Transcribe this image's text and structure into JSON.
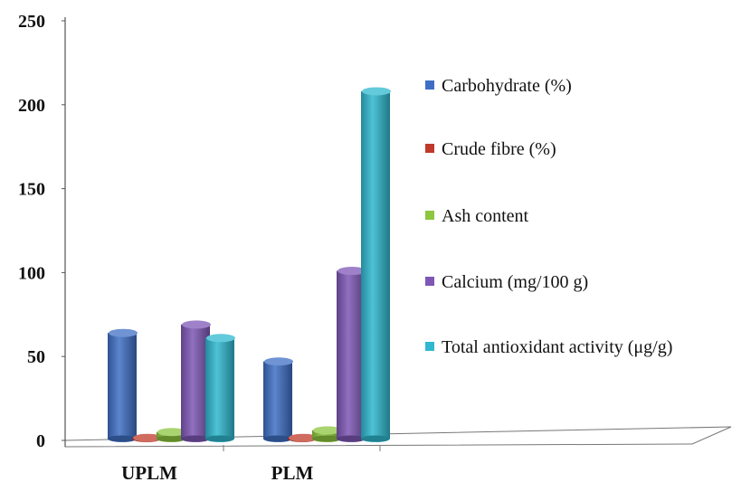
{
  "chart_data": {
    "type": "bar",
    "style": "3d-cylinder",
    "categories": [
      "UPLM",
      "PLM"
    ],
    "series": [
      {
        "name": "Carbohydrate (%)",
        "color": "#3f6fc4",
        "values": [
          64,
          47
        ]
      },
      {
        "name": "Crude fibre (%)",
        "color": "#c0392b",
        "values": [
          1.5,
          1.5
        ]
      },
      {
        "name": "Ash content",
        "color": "#8dc63f",
        "values": [
          5,
          6
        ]
      },
      {
        "name": "Calcium (mg/100 g)",
        "color": "#7e57b5",
        "values": [
          69,
          101
        ]
      },
      {
        "name": "Total antioxidant activity (μg/g)",
        "color": "#2fb8cf",
        "values": [
          61,
          208
        ]
      }
    ],
    "ylim": [
      0,
      250
    ],
    "yticks": [
      "0",
      "50",
      "100",
      "150",
      "200",
      "250"
    ],
    "legend_position": "right",
    "grid": false
  }
}
